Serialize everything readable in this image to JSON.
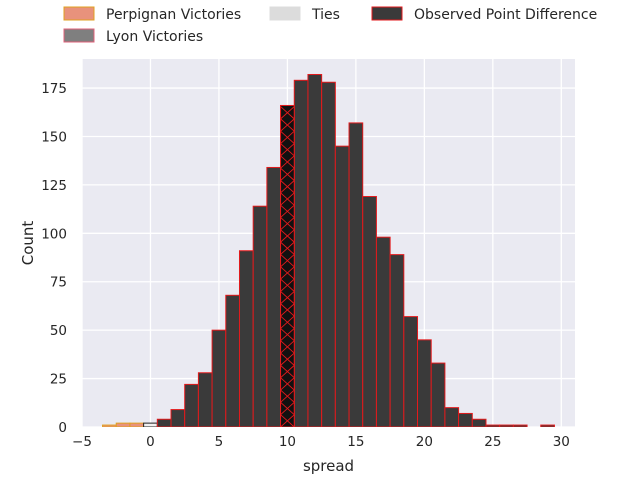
{
  "chart_data": {
    "type": "bar",
    "xlabel": "spread",
    "ylabel": "Count",
    "xlim": [
      -5,
      31
    ],
    "ylim": [
      0,
      190
    ],
    "grid": true,
    "x_ticks": [
      -5,
      0,
      5,
      10,
      15,
      20,
      25,
      30
    ],
    "y_ticks": [
      0,
      25,
      50,
      75,
      100,
      125,
      150,
      175
    ],
    "legend_position": "top",
    "legend": [
      {
        "label": "Perpignan Victories",
        "color": "#e8927c",
        "edge": "#e0a020"
      },
      {
        "label": "Lyon Victories",
        "color": "#7f7f7f",
        "edge": "#e0607a"
      },
      {
        "label": "Ties",
        "color": "#dcdcdc",
        "edge": "#dcdcdc"
      },
      {
        "label": "Observed Point Difference",
        "color": "#3a3a3a",
        "edge": "#e31a1c"
      }
    ],
    "bin_width": 1,
    "series": [
      {
        "name": "Perpignan Victories",
        "color": "#e8927c",
        "edge": "#e0a020",
        "bins": [
          [
            -3.5,
            1
          ],
          [
            -2.5,
            2
          ],
          [
            -1.5,
            2
          ]
        ]
      },
      {
        "name": "Ties",
        "color": "#f0f0f0",
        "edge": "#222222",
        "bins": [
          [
            -0.5,
            2
          ]
        ]
      },
      {
        "name": "Observed Point Difference",
        "color": "#3a3a3a",
        "edge": "#e31a1c",
        "bins": [
          [
            0.5,
            4
          ],
          [
            1.5,
            9
          ],
          [
            2.5,
            22
          ],
          [
            3.5,
            28
          ],
          [
            4.5,
            50
          ],
          [
            5.5,
            68
          ],
          [
            6.5,
            91
          ],
          [
            7.5,
            114
          ],
          [
            8.5,
            134
          ],
          [
            9.5,
            166
          ],
          [
            10.5,
            179
          ],
          [
            11.5,
            182
          ],
          [
            12.5,
            178
          ],
          [
            13.5,
            145
          ],
          [
            14.5,
            157
          ],
          [
            15.5,
            119
          ],
          [
            16.5,
            98
          ],
          [
            17.5,
            89
          ],
          [
            18.5,
            57
          ],
          [
            19.5,
            45
          ],
          [
            20.5,
            33
          ],
          [
            21.5,
            10
          ],
          [
            22.5,
            7
          ],
          [
            23.5,
            4
          ],
          [
            24.5,
            1
          ],
          [
            25.5,
            1
          ],
          [
            26.5,
            1
          ],
          [
            28.5,
            1
          ]
        ]
      }
    ],
    "highlight_bin": {
      "x": 9.5,
      "value": 166,
      "color": "#111111",
      "edge": "#e31a1c",
      "hatch": "x"
    }
  }
}
